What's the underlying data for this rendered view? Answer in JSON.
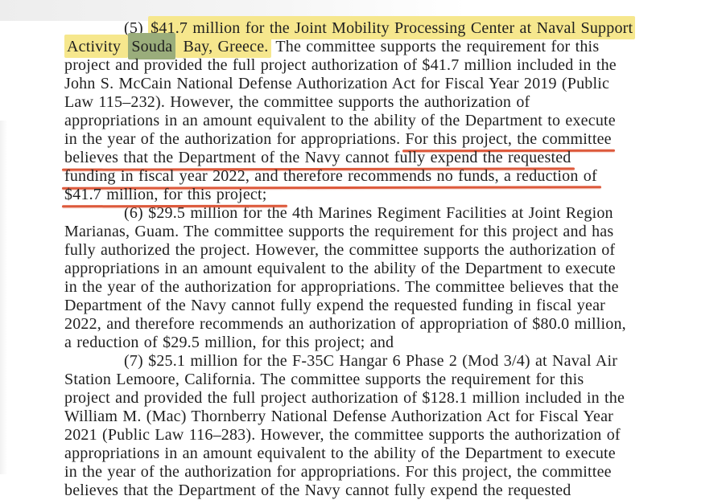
{
  "colors": {
    "highlight_yellow": "#f6e78d",
    "search_match_green": "#9aad7b",
    "underline_red": "#dd5a3c",
    "text": "#1f1f1f",
    "page_background": "#ffffff"
  },
  "document": {
    "kind": "scanned-committee-report-page",
    "lines": [
      {
        "indent": true,
        "segments": [
          {
            "t": "(5) "
          },
          {
            "t": "$41.7 million for the Joint Mobility Processing Center at Naval Support",
            "hl": "yellow"
          }
        ]
      },
      {
        "indent": false,
        "segments": [
          {
            "t": "Activity ",
            "hl": "yellow"
          },
          {
            "t": "Souda",
            "hl": "green"
          },
          {
            "t": " Bay, Greece.",
            "hl": "yellow"
          },
          {
            "t": " The committee supports the requirement for this"
          }
        ]
      },
      {
        "indent": false,
        "segments": [
          {
            "t": "project and provided the full project authorization of $41.7 million included in the"
          }
        ]
      },
      {
        "indent": false,
        "segments": [
          {
            "t": "John S. McCain National Defense Authorization Act for Fiscal Year 2019 (Public"
          }
        ]
      },
      {
        "indent": false,
        "segments": [
          {
            "t": "Law 115–232). However, the committee supports the authorization of"
          }
        ]
      },
      {
        "indent": false,
        "segments": [
          {
            "t": "appropriations in an amount equivalent to the ability of the Department to execute"
          }
        ]
      },
      {
        "indent": false,
        "segments": [
          {
            "t": "in the year of the authorization for appropriations. "
          },
          {
            "t": "For this project, the committee",
            "ul": true
          }
        ]
      },
      {
        "indent": false,
        "segments": [
          {
            "t": "believes that the Department of the Navy cannot fully expend the requested",
            "ul": true
          }
        ]
      },
      {
        "indent": false,
        "segments": [
          {
            "t": "funding in fiscal year 2022, and therefore recommends no funds, a reduction of",
            "ul": true
          }
        ]
      },
      {
        "indent": false,
        "segments": [
          {
            "t": "$41.7 million, for this project;",
            "ul": true,
            "ext": true
          }
        ]
      },
      {
        "indent": true,
        "segments": [
          {
            "t": "(6) $29.5 million for the 4th Marines Regiment Facilities at Joint Region"
          }
        ]
      },
      {
        "indent": false,
        "segments": [
          {
            "t": "Marianas, Guam. The committee supports the requirement for this project and has"
          }
        ]
      },
      {
        "indent": false,
        "segments": [
          {
            "t": "fully authorized the project. However, the committee supports the authorization of"
          }
        ]
      },
      {
        "indent": false,
        "segments": [
          {
            "t": "appropriations in an amount equivalent to the ability of the Department to execute"
          }
        ]
      },
      {
        "indent": false,
        "segments": [
          {
            "t": "in the year of the authorization for appropriations. The committee believes that the"
          }
        ]
      },
      {
        "indent": false,
        "segments": [
          {
            "t": "Department of the Navy cannot fully expend the requested funding in fiscal year"
          }
        ]
      },
      {
        "indent": false,
        "segments": [
          {
            "t": "2022, and therefore recommends an authorization of appropriation of $80.0 million,"
          }
        ]
      },
      {
        "indent": false,
        "segments": [
          {
            "t": "a reduction of $29.5 million, for this project; and"
          }
        ]
      },
      {
        "indent": true,
        "segments": [
          {
            "t": "(7) $25.1 million for the F-35C Hangar 6 Phase 2 (Mod 3/4) at Naval Air"
          }
        ]
      },
      {
        "indent": false,
        "segments": [
          {
            "t": "Station Lemoore, California. The committee supports the requirement for this"
          }
        ]
      },
      {
        "indent": false,
        "segments": [
          {
            "t": "project and provided the full project authorization of $128.1 million included in the"
          }
        ]
      },
      {
        "indent": false,
        "segments": [
          {
            "t": "William M. (Mac) Thornberry National Defense Authorization Act for Fiscal Year"
          }
        ]
      },
      {
        "indent": false,
        "segments": [
          {
            "t": "2021 (Public Law 116–283). However, the committee supports the authorization of"
          }
        ]
      },
      {
        "indent": false,
        "segments": [
          {
            "t": "appropriations in an amount equivalent to the ability of the Department to execute"
          }
        ]
      },
      {
        "indent": false,
        "segments": [
          {
            "t": "in the year of the authorization for appropriations. For this project, the committee"
          }
        ]
      },
      {
        "indent": false,
        "segments": [
          {
            "t": "believes that the Department of the Navy cannot fully expend the requested"
          }
        ]
      }
    ]
  }
}
